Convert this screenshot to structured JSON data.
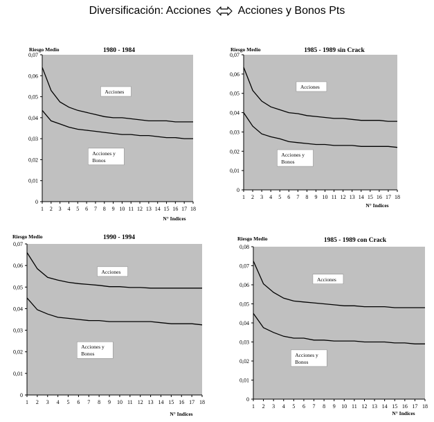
{
  "page": {
    "title_left": "Diversificación: Acciones",
    "title_right": "Acciones y Bonos Pts",
    "arrow_icon": "double-arrow-icon"
  },
  "chart_data": [
    {
      "type": "line",
      "title": "1980 - 1984",
      "ylabel": "Riesgo Medio",
      "xlabel": "N° Indices",
      "x": [
        1,
        2,
        3,
        4,
        5,
        6,
        7,
        8,
        9,
        10,
        11,
        12,
        13,
        14,
        15,
        16,
        17,
        18
      ],
      "ylim": [
        0,
        0.07
      ],
      "yticks": [
        "0",
        "0,01",
        "0,02",
        "0,03",
        "0,04",
        "0,05",
        "0,06",
        "0,07"
      ],
      "series": [
        {
          "name": "Acciones",
          "values": [
            0.064,
            0.053,
            0.0475,
            0.045,
            0.0435,
            0.0425,
            0.0415,
            0.0405,
            0.04,
            0.04,
            0.0395,
            0.039,
            0.0385,
            0.0385,
            0.0385,
            0.038,
            0.038,
            0.038
          ]
        },
        {
          "name": "Acciones y Bonos",
          "values": [
            0.0435,
            0.0385,
            0.037,
            0.0355,
            0.0345,
            0.034,
            0.0335,
            0.033,
            0.0325,
            0.032,
            0.032,
            0.0315,
            0.0315,
            0.031,
            0.0305,
            0.0305,
            0.03,
            0.03
          ]
        }
      ],
      "labels": [
        {
          "series": 0,
          "text": "Acciones",
          "x": 9.3,
          "y": 0.0525
        },
        {
          "series": 1,
          "lines": [
            "Acciones y",
            "Bonos"
          ],
          "x": 8.2,
          "y": 0.0215
        }
      ]
    },
    {
      "type": "line",
      "title": "1985 - 1989 sin Crack",
      "ylabel": "Riesgo Medio",
      "xlabel": "N° Indices",
      "x": [
        1,
        2,
        3,
        4,
        5,
        6,
        7,
        8,
        9,
        10,
        11,
        12,
        13,
        14,
        15,
        16,
        17,
        18
      ],
      "ylim": [
        0,
        0.07
      ],
      "yticks": [
        "0",
        "0,01",
        "0,02",
        "0,03",
        "0,04",
        "0,05",
        "0,06",
        "0,07"
      ],
      "series": [
        {
          "name": "Acciones",
          "values": [
            0.0635,
            0.0515,
            0.046,
            0.043,
            0.0415,
            0.04,
            0.0395,
            0.0385,
            0.038,
            0.0375,
            0.037,
            0.037,
            0.0365,
            0.036,
            0.036,
            0.036,
            0.0355,
            0.0355
          ]
        },
        {
          "name": "Acciones y Bonos",
          "values": [
            0.04,
            0.033,
            0.029,
            0.0275,
            0.0265,
            0.025,
            0.0245,
            0.024,
            0.0235,
            0.0235,
            0.023,
            0.023,
            0.023,
            0.0225,
            0.0225,
            0.0225,
            0.0225,
            0.022
          ]
        }
      ],
      "labels": [
        {
          "series": 0,
          "text": "Acciones",
          "x": 8.5,
          "y": 0.0535
        },
        {
          "series": 1,
          "lines": [
            "Acciones y",
            "Bonos"
          ],
          "x": 6.7,
          "y": 0.0165
        }
      ]
    },
    {
      "type": "line",
      "title": "1990 - 1994",
      "ylabel": "Riesgo Medio",
      "xlabel": "N° Indices",
      "x": [
        1,
        2,
        3,
        4,
        5,
        6,
        7,
        8,
        9,
        10,
        11,
        12,
        13,
        14,
        15,
        16,
        17,
        18
      ],
      "ylim": [
        0,
        0.07
      ],
      "yticks": [
        "0",
        "0,01",
        "0,02",
        "0,03",
        "0,04",
        "0,05",
        "0,06",
        "0,07"
      ],
      "series": [
        {
          "name": "Acciones",
          "values": [
            0.066,
            0.0585,
            0.0545,
            0.0532,
            0.0522,
            0.0516,
            0.0512,
            0.0508,
            0.0502,
            0.0502,
            0.0498,
            0.0498,
            0.0495,
            0.0495,
            0.0495,
            0.0495,
            0.0495,
            0.0495
          ]
        },
        {
          "name": "Acciones y Bonos",
          "values": [
            0.045,
            0.0395,
            0.0375,
            0.036,
            0.0355,
            0.035,
            0.0345,
            0.0345,
            0.034,
            0.034,
            0.034,
            0.034,
            0.034,
            0.0335,
            0.033,
            0.033,
            0.033,
            0.0325
          ]
        }
      ],
      "labels": [
        {
          "series": 0,
          "text": "Acciones",
          "x": 9.3,
          "y": 0.0572
        },
        {
          "series": 1,
          "lines": [
            "Acciones y",
            "Bonos"
          ],
          "x": 7.6,
          "y": 0.0208
        }
      ]
    },
    {
      "type": "line",
      "title": "1985 - 1989 con Crack",
      "ylabel": "Riesgo Medio",
      "xlabel": "N° Indices",
      "x": [
        1,
        2,
        3,
        4,
        5,
        6,
        7,
        8,
        9,
        10,
        11,
        12,
        13,
        14,
        15,
        16,
        17,
        18
      ],
      "ylim": [
        0,
        0.08
      ],
      "yticks": [
        "0",
        "0,01",
        "0,02",
        "0,03",
        "0,04",
        "0,05",
        "0,06",
        "0,07",
        "0,08"
      ],
      "series": [
        {
          "name": "Acciones",
          "values": [
            0.0725,
            0.0605,
            0.056,
            0.053,
            0.0515,
            0.051,
            0.0505,
            0.05,
            0.0495,
            0.049,
            0.049,
            0.0485,
            0.0485,
            0.0485,
            0.048,
            0.048,
            0.048,
            0.048
          ]
        },
        {
          "name": "Acciones y Bonos",
          "values": [
            0.045,
            0.0375,
            0.035,
            0.033,
            0.032,
            0.032,
            0.031,
            0.031,
            0.0305,
            0.0305,
            0.0305,
            0.03,
            0.03,
            0.03,
            0.0295,
            0.0295,
            0.029,
            0.029
          ]
        }
      ],
      "labels": [
        {
          "series": 0,
          "text": "Acciones",
          "x": 8.4,
          "y": 0.063
        },
        {
          "series": 1,
          "lines": [
            "Acciones y",
            "Bonos"
          ],
          "x": 6.5,
          "y": 0.0215
        }
      ]
    }
  ]
}
